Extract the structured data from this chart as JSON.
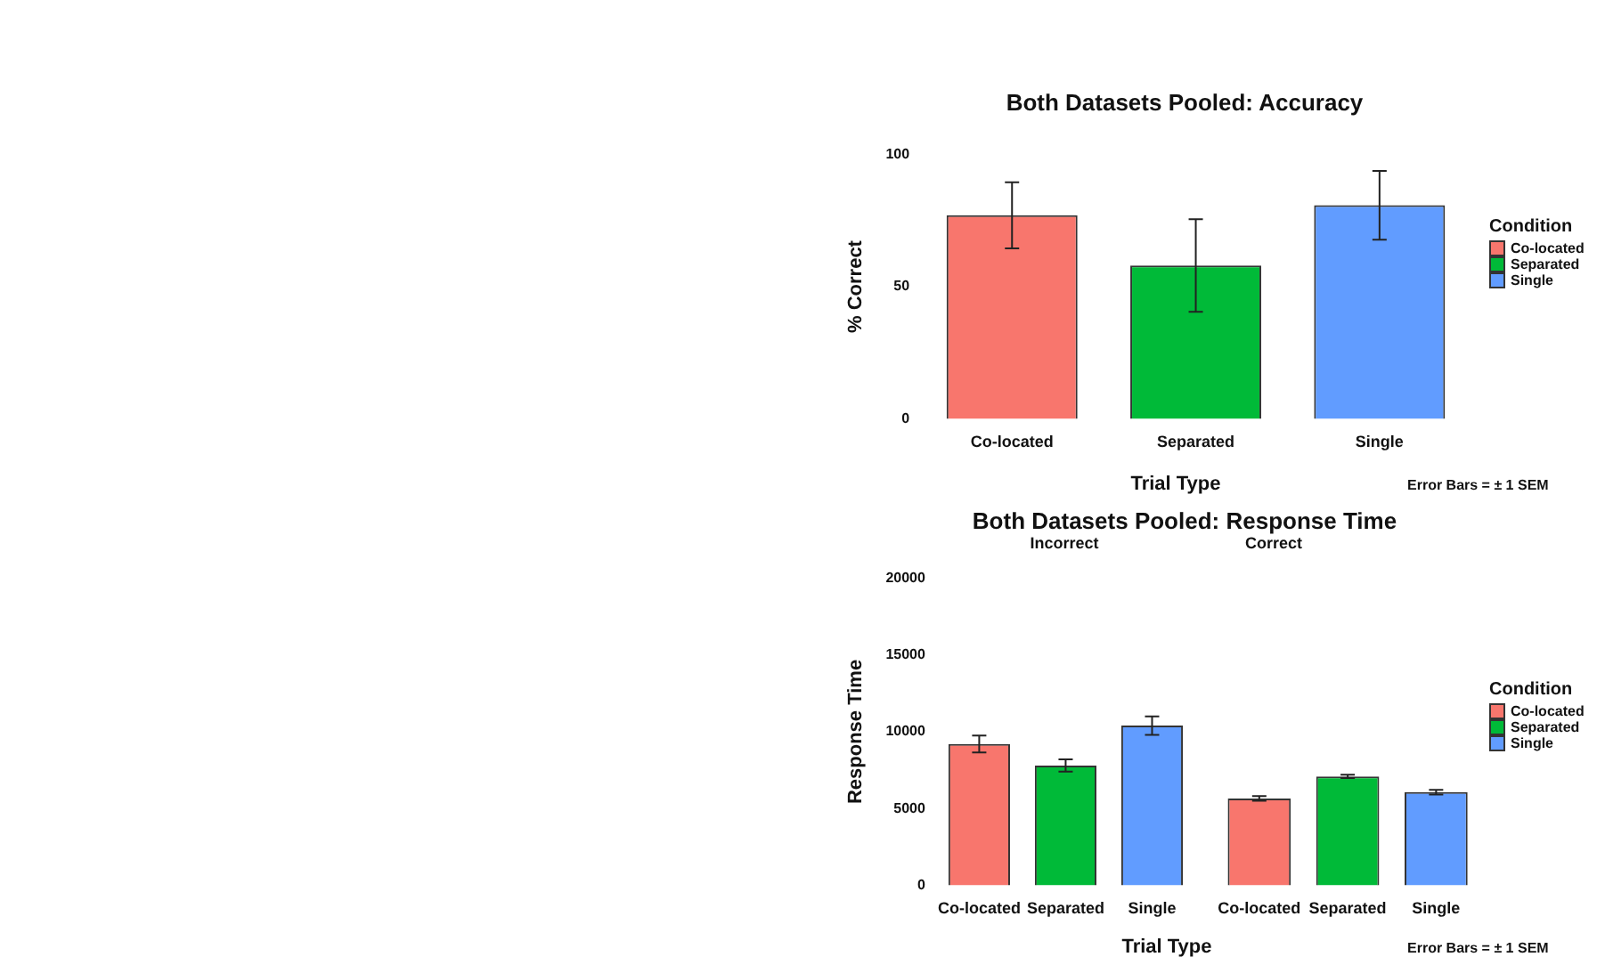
{
  "chart_data": [
    {
      "type": "bar",
      "title": "Both Datasets Pooled: Accuracy",
      "xlabel": "Trial Type",
      "ylabel": "% Correct",
      "legend": "right",
      "legend_title": "Condition",
      "stacked": true,
      "categories": [
        "Co-located",
        "Separated",
        "Single"
      ],
      "series": [
        {
          "name": "Co-located",
          "color": "#f8766d",
          "values": [
            77,
            null,
            null
          ],
          "errors": [
            12.5,
            null,
            null
          ]
        },
        {
          "name": "Separated",
          "color": "#00ba38",
          "values": [
            null,
            58,
            null
          ],
          "errors": [
            null,
            17.5,
            null
          ]
        },
        {
          "name": "Single",
          "color": "#619cff",
          "values": [
            null,
            null,
            80.8
          ],
          "errors": [
            null,
            null,
            13
          ]
        }
      ],
      "ylim": [
        0,
        100
      ],
      "yticks": [
        0,
        50,
        100
      ],
      "annotations": [
        "Error Bars = ± 1 SEM"
      ]
    },
    {
      "type": "bar",
      "title": "Both Datasets Pooled: Response Time",
      "subtitle": "Incorrect",
      "xlabel": "Trial Type",
      "ylabel": "Response Time",
      "stacked": true,
      "categories": [
        "Co-located",
        "Separated",
        "Single"
      ],
      "series": [
        {
          "color": "#f8766d",
          "values": [
            9200,
            null,
            null
          ],
          "errors": [
            550,
            null,
            null
          ]
        },
        {
          "color": "#00ba38",
          "values": [
            null,
            7800,
            null
          ],
          "errors": [
            null,
            400,
            null
          ]
        },
        {
          "color": "#619cff",
          "values": [
            null,
            null,
            10400
          ],
          "errors": [
            null,
            null,
            600
          ]
        }
      ],
      "ylim": [
        0,
        20000
      ],
      "yticks": [
        0,
        5000,
        10000,
        15000,
        20000
      ]
    },
    {
      "type": "bar",
      "subtitle": "Correct",
      "legend": "right",
      "legend_title": "Condition",
      "stacked": true,
      "categories": [
        "Co-located",
        "Separated",
        "Single"
      ],
      "series": [
        {
          "name": "Co-located",
          "color": "#f8766d",
          "values": [
            5500,
            null,
            null
          ],
          "errors": [
            150,
            null,
            null
          ]
        },
        {
          "name": "Separated",
          "color": "#00ba38",
          "values": [
            null,
            6900,
            null
          ],
          "errors": [
            null,
            100,
            null
          ]
        },
        {
          "name": "Single",
          "color": "#619cff",
          "values": [
            null,
            null,
            5900
          ],
          "errors": [
            null,
            null,
            150
          ]
        }
      ],
      "ylim": [
        0,
        20000
      ],
      "tick_labels": "x",
      "annotations": [
        "Error Bars = ± 1 SEM"
      ]
    }
  ]
}
